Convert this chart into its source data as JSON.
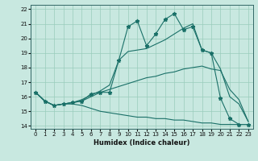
{
  "xlabel": "Humidex (Indice chaleur)",
  "xlim": [
    -0.5,
    23.5
  ],
  "ylim": [
    13.8,
    22.3
  ],
  "xticks": [
    0,
    1,
    2,
    3,
    4,
    5,
    6,
    7,
    8,
    9,
    10,
    11,
    12,
    13,
    14,
    15,
    16,
    17,
    18,
    19,
    20,
    21,
    22,
    23
  ],
  "yticks": [
    14,
    15,
    16,
    17,
    18,
    19,
    20,
    21,
    22
  ],
  "bg_color": "#c8e8e0",
  "grid_color": "#99ccbb",
  "line_color": "#1a7068",
  "line1_y": [
    16.3,
    15.7,
    15.4,
    15.5,
    15.6,
    15.7,
    16.2,
    16.3,
    16.3,
    18.5,
    20.8,
    21.2,
    19.5,
    20.3,
    21.3,
    21.7,
    20.6,
    20.8,
    19.2,
    19.0,
    15.9,
    14.5,
    14.1,
    14.1
  ],
  "line2_y": [
    16.3,
    15.7,
    15.4,
    15.5,
    15.6,
    15.8,
    16.1,
    16.4,
    16.8,
    18.5,
    19.1,
    19.2,
    19.3,
    19.6,
    19.9,
    20.3,
    20.7,
    21.0,
    19.2,
    19.0,
    17.9,
    16.0,
    15.5,
    14.3
  ],
  "line3_y": [
    16.3,
    15.7,
    15.4,
    15.5,
    15.6,
    15.7,
    16.0,
    16.3,
    16.5,
    16.7,
    16.9,
    17.1,
    17.3,
    17.4,
    17.6,
    17.7,
    17.9,
    18.0,
    18.1,
    17.9,
    17.8,
    16.5,
    15.8,
    14.3
  ],
  "line4_y": [
    16.3,
    15.7,
    15.4,
    15.5,
    15.5,
    15.4,
    15.2,
    15.0,
    14.9,
    14.8,
    14.7,
    14.6,
    14.6,
    14.5,
    14.5,
    14.4,
    14.4,
    14.3,
    14.2,
    14.2,
    14.1,
    14.1,
    14.1,
    14.1
  ]
}
